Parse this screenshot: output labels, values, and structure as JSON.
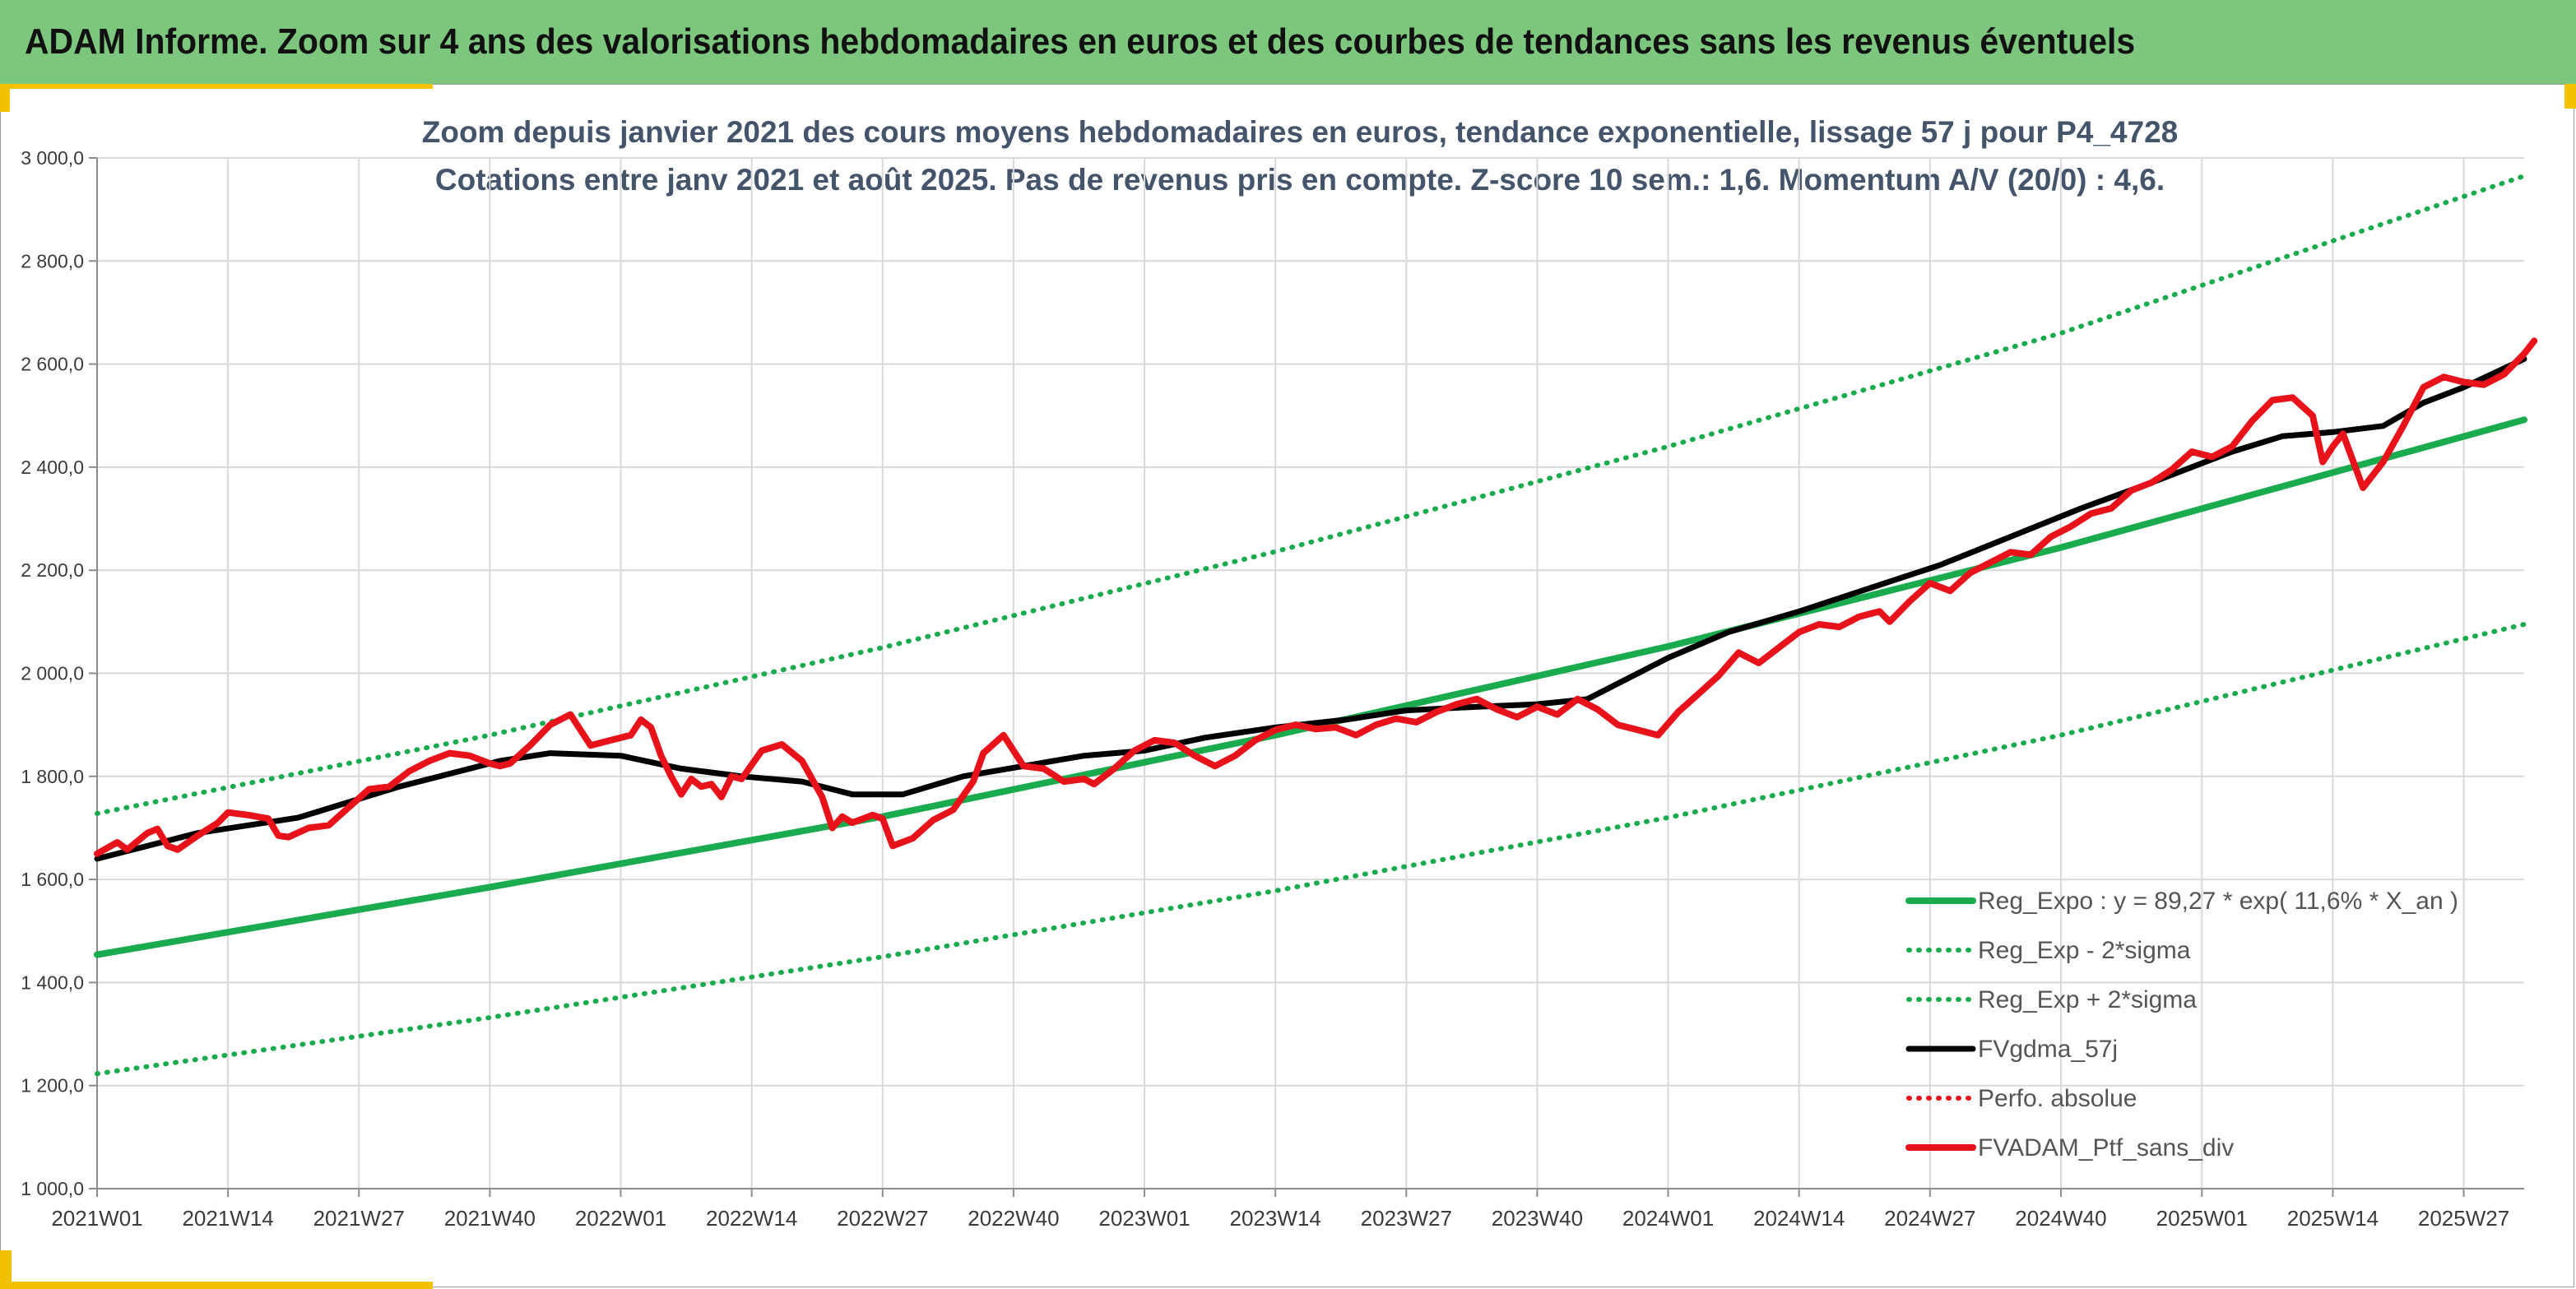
{
  "header": {
    "title": "ADAM Informe. Zoom sur 4 ans des valorisations hebdomadaires en euros et des courbes de tendances sans les revenus éventuels"
  },
  "colors": {
    "banner": "#7dc67d",
    "accent": "#f2c200",
    "reg_expo": "#1aab4e",
    "fvgdma": "#000000",
    "portfolio": "#e8121b",
    "title": "#44546a"
  },
  "chart_data": {
    "type": "line",
    "title": "Zoom depuis janvier 2021 des cours moyens hebdomadaires en euros, tendance exponentielle, lissage 57 j pour P4_4728",
    "subtitle": "Cotations entre janv 2021 et août 2025. Pas de revenus pris en compte. Z-score 10 sem.: 1,6. Momentum A/V (20/0) : 4,6.",
    "ylim": [
      1000,
      3000
    ],
    "yticks": [
      "1 000,0",
      "1 200,0",
      "1 400,0",
      "1 600,0",
      "1 800,0",
      "2 000,0",
      "2 200,0",
      "2 400,0",
      "2 600,0",
      "2 800,0",
      "3 000,0"
    ],
    "ytick_values": [
      1000,
      1200,
      1400,
      1600,
      1800,
      2000,
      2200,
      2400,
      2600,
      2800,
      3000
    ],
    "x_range_weeks": [
      0,
      241
    ],
    "xticks": [
      "2021W01",
      "2021W14",
      "2021W27",
      "2021W40",
      "2022W01",
      "2022W14",
      "2022W27",
      "2022W40",
      "2023W01",
      "2023W14",
      "2023W27",
      "2023W40",
      "2024W01",
      "2024W14",
      "2024W27",
      "2024W40",
      "2025W01",
      "2025W14",
      "2025W27"
    ],
    "xtick_weeks": [
      0,
      13,
      26,
      39,
      52,
      65,
      78,
      91,
      104,
      117,
      130,
      143,
      156,
      169,
      182,
      195,
      209,
      222,
      235
    ],
    "grid": true,
    "legend_position": "bottom-right",
    "series": [
      {
        "name": "Reg_Expo : y = 89,27 * exp( 11,6% *  X_an )",
        "style": "solid-thick",
        "color": "#1aab4e",
        "points": [
          [
            0,
            1454
          ],
          [
            39,
            1585
          ],
          [
            78,
            1722
          ],
          [
            117,
            1880
          ],
          [
            156,
            2052
          ],
          [
            195,
            2244
          ],
          [
            241,
            2492
          ]
        ]
      },
      {
        "name": "Reg_Exp - 2*sigma",
        "style": "dotted",
        "color": "#1aab4e",
        "points": [
          [
            0,
            1223
          ],
          [
            39,
            1332
          ],
          [
            78,
            1450
          ],
          [
            117,
            1578
          ],
          [
            156,
            1720
          ],
          [
            195,
            1880
          ],
          [
            241,
            2095
          ]
        ]
      },
      {
        "name": "Reg_Exp + 2*sigma",
        "style": "dotted",
        "color": "#1aab4e",
        "points": [
          [
            0,
            1728
          ],
          [
            39,
            1880
          ],
          [
            78,
            2050
          ],
          [
            117,
            2236
          ],
          [
            156,
            2440
          ],
          [
            195,
            2660
          ],
          [
            241,
            2965
          ]
        ]
      },
      {
        "name": "FVgdma_57j",
        "style": "solid",
        "color": "#000000",
        "points": [
          [
            0,
            1640
          ],
          [
            10,
            1690
          ],
          [
            20,
            1720
          ],
          [
            30,
            1780
          ],
          [
            40,
            1830
          ],
          [
            45,
            1845
          ],
          [
            52,
            1840
          ],
          [
            58,
            1815
          ],
          [
            64,
            1800
          ],
          [
            70,
            1790
          ],
          [
            75,
            1765
          ],
          [
            80,
            1765
          ],
          [
            86,
            1800
          ],
          [
            92,
            1820
          ],
          [
            98,
            1840
          ],
          [
            104,
            1850
          ],
          [
            110,
            1875
          ],
          [
            117,
            1895
          ],
          [
            124,
            1910
          ],
          [
            130,
            1928
          ],
          [
            137,
            1935
          ],
          [
            143,
            1940
          ],
          [
            148,
            1950
          ],
          [
            152,
            1990
          ],
          [
            156,
            2030
          ],
          [
            162,
            2080
          ],
          [
            169,
            2120
          ],
          [
            176,
            2165
          ],
          [
            183,
            2210
          ],
          [
            190,
            2265
          ],
          [
            197,
            2320
          ],
          [
            204,
            2370
          ],
          [
            212,
            2430
          ],
          [
            217,
            2460
          ],
          [
            222,
            2468
          ],
          [
            227,
            2480
          ],
          [
            231,
            2525
          ],
          [
            235,
            2555
          ],
          [
            241,
            2610
          ]
        ]
      },
      {
        "name": "Perfo. absolue",
        "style": "dotted",
        "color": "#e8121b",
        "points": []
      },
      {
        "name": "FVADAM_Ptf_sans_div",
        "style": "solid-thick",
        "color": "#e8121b",
        "points": [
          [
            0,
            1650
          ],
          [
            2,
            1672
          ],
          [
            3,
            1658
          ],
          [
            5,
            1690
          ],
          [
            6,
            1698
          ],
          [
            7,
            1665
          ],
          [
            8,
            1658
          ],
          [
            10,
            1685
          ],
          [
            12,
            1710
          ],
          [
            13,
            1730
          ],
          [
            15,
            1725
          ],
          [
            17,
            1718
          ],
          [
            18,
            1685
          ],
          [
            19,
            1682
          ],
          [
            21,
            1700
          ],
          [
            23,
            1705
          ],
          [
            25,
            1740
          ],
          [
            27,
            1775
          ],
          [
            29,
            1780
          ],
          [
            31,
            1810
          ],
          [
            33,
            1830
          ],
          [
            35,
            1845
          ],
          [
            37,
            1840
          ],
          [
            39,
            1825
          ],
          [
            40,
            1820
          ],
          [
            41,
            1825
          ],
          [
            43,
            1860
          ],
          [
            45,
            1900
          ],
          [
            47,
            1920
          ],
          [
            49,
            1860
          ],
          [
            51,
            1870
          ],
          [
            53,
            1880
          ],
          [
            54,
            1910
          ],
          [
            55,
            1895
          ],
          [
            56,
            1840
          ],
          [
            57,
            1800
          ],
          [
            58,
            1765
          ],
          [
            59,
            1795
          ],
          [
            60,
            1780
          ],
          [
            61,
            1785
          ],
          [
            62,
            1760
          ],
          [
            63,
            1800
          ],
          [
            64,
            1795
          ],
          [
            66,
            1850
          ],
          [
            68,
            1862
          ],
          [
            70,
            1830
          ],
          [
            72,
            1760
          ],
          [
            73,
            1700
          ],
          [
            74,
            1722
          ],
          [
            75,
            1710
          ],
          [
            77,
            1725
          ],
          [
            78,
            1718
          ],
          [
            79,
            1665
          ],
          [
            81,
            1680
          ],
          [
            83,
            1715
          ],
          [
            85,
            1735
          ],
          [
            87,
            1790
          ],
          [
            88,
            1845
          ],
          [
            90,
            1880
          ],
          [
            92,
            1820
          ],
          [
            94,
            1815
          ],
          [
            96,
            1790
          ],
          [
            98,
            1795
          ],
          [
            99,
            1785
          ],
          [
            101,
            1815
          ],
          [
            103,
            1850
          ],
          [
            105,
            1870
          ],
          [
            107,
            1865
          ],
          [
            109,
            1840
          ],
          [
            111,
            1820
          ],
          [
            113,
            1840
          ],
          [
            115,
            1870
          ],
          [
            117,
            1890
          ],
          [
            119,
            1900
          ],
          [
            121,
            1892
          ],
          [
            123,
            1895
          ],
          [
            125,
            1880
          ],
          [
            127,
            1900
          ],
          [
            129,
            1912
          ],
          [
            131,
            1905
          ],
          [
            133,
            1925
          ],
          [
            135,
            1940
          ],
          [
            137,
            1950
          ],
          [
            139,
            1930
          ],
          [
            141,
            1915
          ],
          [
            143,
            1935
          ],
          [
            145,
            1920
          ],
          [
            147,
            1950
          ],
          [
            149,
            1930
          ],
          [
            151,
            1900
          ],
          [
            153,
            1890
          ],
          [
            155,
            1880
          ],
          [
            157,
            1925
          ],
          [
            159,
            1960
          ],
          [
            161,
            1995
          ],
          [
            163,
            2040
          ],
          [
            165,
            2020
          ],
          [
            167,
            2050
          ],
          [
            169,
            2080
          ],
          [
            171,
            2095
          ],
          [
            173,
            2090
          ],
          [
            175,
            2110
          ],
          [
            177,
            2120
          ],
          [
            178,
            2100
          ],
          [
            180,
            2140
          ],
          [
            182,
            2175
          ],
          [
            184,
            2160
          ],
          [
            186,
            2195
          ],
          [
            188,
            2215
          ],
          [
            190,
            2235
          ],
          [
            192,
            2230
          ],
          [
            194,
            2265
          ],
          [
            196,
            2285
          ],
          [
            198,
            2310
          ],
          [
            200,
            2320
          ],
          [
            202,
            2355
          ],
          [
            204,
            2370
          ],
          [
            206,
            2395
          ],
          [
            208,
            2430
          ],
          [
            210,
            2420
          ],
          [
            212,
            2440
          ],
          [
            214,
            2490
          ],
          [
            216,
            2530
          ],
          [
            218,
            2535
          ],
          [
            220,
            2500
          ],
          [
            221,
            2410
          ],
          [
            222,
            2440
          ],
          [
            223,
            2465
          ],
          [
            225,
            2360
          ],
          [
            227,
            2410
          ],
          [
            229,
            2480
          ],
          [
            231,
            2555
          ],
          [
            233,
            2575
          ],
          [
            235,
            2565
          ],
          [
            237,
            2560
          ],
          [
            239,
            2580
          ],
          [
            241,
            2620
          ],
          [
            242,
            2645
          ]
        ]
      }
    ]
  }
}
